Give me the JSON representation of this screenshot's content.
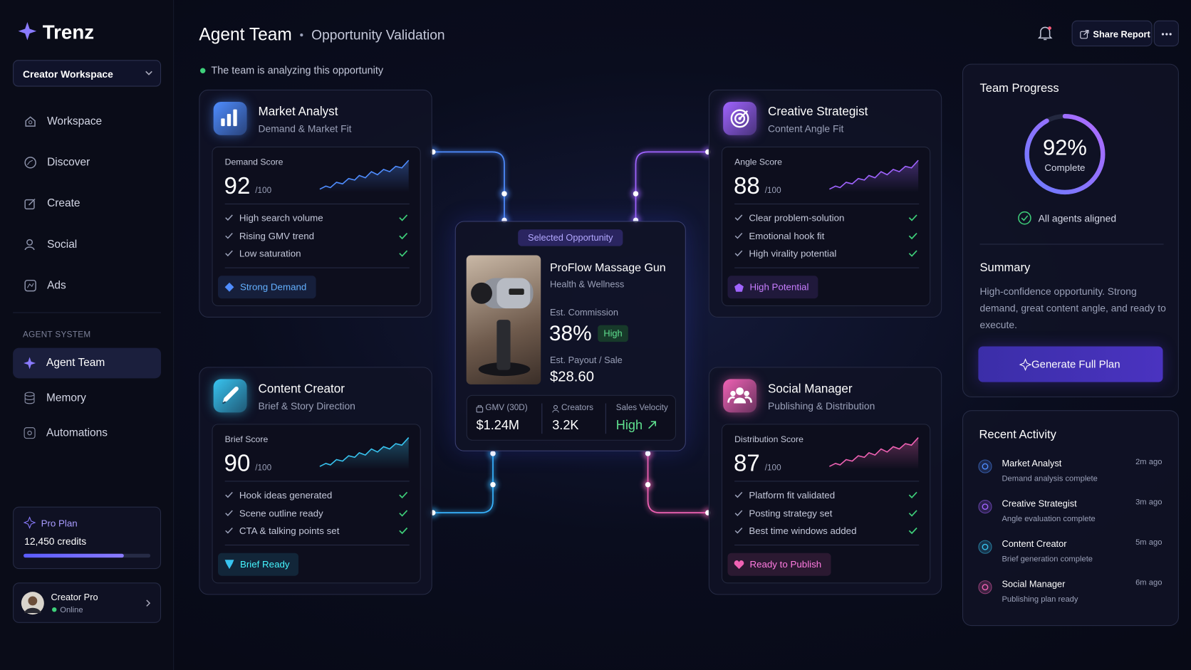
{
  "brand": "Trenz",
  "workspace": "Creator Workspace",
  "nav": [
    "Workspace",
    "Discover",
    "Create",
    "Social",
    "Ads"
  ],
  "agent_system_label": "AGENT SYSTEM",
  "agent_nav": [
    "Agent Team",
    "Memory",
    "Automations"
  ],
  "plan": {
    "name": "Pro Plan",
    "credits": "12,450 credits"
  },
  "user": {
    "name": "Creator Pro",
    "status": "Online"
  },
  "header": {
    "title": "Agent Team",
    "subtitle": "Opportunity Validation",
    "share": "Share Report"
  },
  "status": "The team is analyzing this opportunity",
  "agents": [
    {
      "name": "Market Analyst",
      "role": "Demand & Market Fit",
      "score_label": "Demand Score",
      "score": 92,
      "score_max": "/100",
      "checks": [
        "High search volume",
        "Rising GMV trend",
        "Low saturation"
      ],
      "badge": "Strong Demand",
      "color": "#4f8dff"
    },
    {
      "name": "Creative Strategist",
      "role": "Content Angle Fit",
      "score_label": "Angle Score",
      "score": 88,
      "score_max": "/100",
      "checks": [
        "Clear problem-solution",
        "Emotional hook fit",
        "High virality potential"
      ],
      "badge": "High Potential",
      "color": "#a064ff"
    },
    {
      "name": "Content Creator",
      "role": "Brief & Story Direction",
      "score_label": "Brief Score",
      "score": 90,
      "score_max": "/100",
      "checks": [
        "Hook ideas generated",
        "Scene outline ready",
        "CTA & talking points set"
      ],
      "badge": "Brief Ready",
      "color": "#38c4f0"
    },
    {
      "name": "Social Manager",
      "role": "Publishing & Distribution",
      "score_label": "Distribution Score",
      "score": 87,
      "score_max": "/100",
      "checks": [
        "Platform fit validated",
        "Posting strategy set",
        "Best time windows added"
      ],
      "badge": "Ready to Publish",
      "color": "#f062b4"
    }
  ],
  "opportunity": {
    "tag": "Selected Opportunity",
    "name": "ProFlow Massage Gun",
    "category": "Health & Wellness",
    "commission_label": "Est. Commission",
    "commission": "38%",
    "commission_tag": "High",
    "payout_label": "Est. Payout / Sale",
    "payout": "$28.60",
    "stats": [
      {
        "label": "GMV (30D)",
        "value": "$1.24M"
      },
      {
        "label": "Creators",
        "value": "3.2K"
      },
      {
        "label": "Sales Velocity",
        "value": "High"
      }
    ]
  },
  "team_progress": {
    "title": "Team Progress",
    "percent": {
      "value": 92,
      "label": "92%"
    },
    "complete": "Complete",
    "aligned": "All agents aligned",
    "summary_title": "Summary",
    "summary": "High-confidence opportunity. Strong demand, great content angle, and ready to execute.",
    "button": "Generate Full Plan"
  },
  "recent_activity": {
    "title": "Recent Activity",
    "items": [
      {
        "name": "Market Analyst",
        "detail": "Demand analysis complete",
        "time": "2m ago"
      },
      {
        "name": "Creative Strategist",
        "detail": "Angle evaluation complete",
        "time": "3m ago"
      },
      {
        "name": "Content Creator",
        "detail": "Brief generation complete",
        "time": "5m ago"
      },
      {
        "name": "Social Manager",
        "detail": "Publishing plan ready",
        "time": "6m ago"
      }
    ]
  }
}
